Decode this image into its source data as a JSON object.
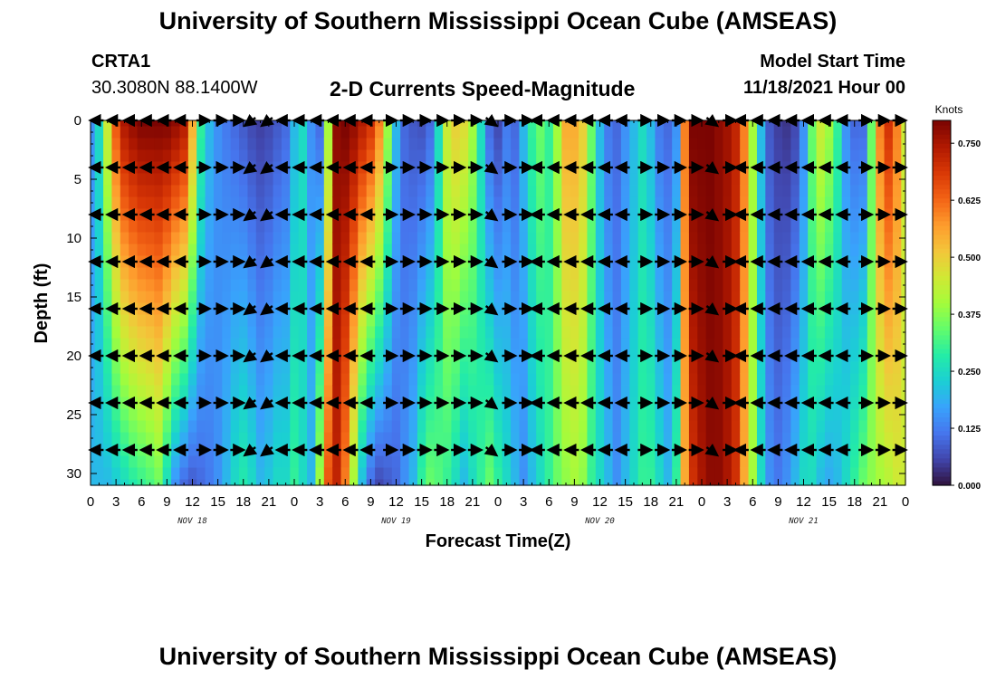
{
  "header": {
    "title": "University of Southern Mississippi Ocean Cube (AMSEAS)",
    "station_id": "CRTA1",
    "station_coords": "30.3080N  88.1400W",
    "plot_title": "2-D Currents Speed-Magnitude",
    "model_start_label": "Model Start Time",
    "model_start_value": "11/18/2021 Hour 00",
    "footer_title": "University of Southern Mississippi Ocean Cube (AMSEAS)"
  },
  "chart_data": {
    "type": "heatmap",
    "title": "2-D Currents Speed-Magnitude",
    "xlabel": "Forecast Time(Z)",
    "ylabel": "Depth (ft)",
    "x_unit": "hours since model start",
    "xlim": [
      0,
      96
    ],
    "ylim": [
      0,
      31
    ],
    "y_inverted": true,
    "x_tick_values": [
      0,
      3,
      6,
      9,
      12,
      15,
      18,
      21,
      24,
      27,
      30,
      33,
      36,
      39,
      42,
      45,
      48,
      51,
      54,
      57,
      60,
      63,
      66,
      69,
      72,
      75,
      78,
      81,
      84,
      87,
      90,
      93,
      96
    ],
    "x_tick_labels": [
      "0",
      "3",
      "6",
      "9",
      "12",
      "15",
      "18",
      "21",
      "0",
      "3",
      "6",
      "9",
      "12",
      "15",
      "18",
      "21",
      "0",
      "3",
      "6",
      "9",
      "12",
      "15",
      "18",
      "21",
      "0",
      "3",
      "6",
      "9",
      "12",
      "15",
      "18",
      "21",
      "0"
    ],
    "date_labels": [
      {
        "hour": 12,
        "text": "NOV 18"
      },
      {
        "hour": 36,
        "text": "NOV 19"
      },
      {
        "hour": 60,
        "text": "NOV 20"
      },
      {
        "hour": 84,
        "text": "NOV 21"
      }
    ],
    "y_ticks": [
      0,
      5,
      10,
      15,
      20,
      25,
      30
    ],
    "colorbar": {
      "label": "Knots",
      "min": 0.0,
      "max": 0.8,
      "ticks": [
        "0.000",
        "0.125",
        "0.250",
        "0.375",
        "0.500",
        "0.625",
        "0.750"
      ],
      "tick_values": [
        0.0,
        0.125,
        0.25,
        0.375,
        0.5,
        0.625,
        0.75
      ],
      "colors": [
        "#30123b",
        "#4145ab",
        "#4675ed",
        "#39a2fc",
        "#1bcfd4",
        "#24eca6",
        "#61fc6c",
        "#a4fc3b",
        "#d1e834",
        "#f3c63a",
        "#fe9b2d",
        "#f36315",
        "#d93806",
        "#b11901",
        "#7a0402"
      ]
    },
    "depths_ft": [
      0,
      1,
      2,
      3,
      4,
      5,
      6,
      7,
      8,
      9,
      10,
      11,
      12,
      13,
      14,
      15,
      16,
      17,
      18,
      19,
      20,
      21,
      22,
      23,
      24,
      25,
      26,
      27,
      28,
      29,
      30,
      31
    ],
    "hours": [
      0,
      1,
      2,
      3,
      4,
      5,
      6,
      7,
      8,
      9,
      10,
      11,
      12,
      13,
      14,
      15,
      16,
      17,
      18,
      19,
      20,
      21,
      22,
      23,
      24,
      25,
      26,
      27,
      28,
      29,
      30,
      31,
      32,
      33,
      34,
      35,
      36,
      37,
      38,
      39,
      40,
      41,
      42,
      43,
      44,
      45,
      46,
      47,
      48,
      49,
      50,
      51,
      52,
      53,
      54,
      55,
      56,
      57,
      58,
      59,
      60,
      61,
      62,
      63,
      64,
      65,
      66,
      67,
      68,
      69,
      70,
      71,
      72,
      73,
      74,
      75,
      76,
      77,
      78,
      79,
      80,
      81,
      82,
      83,
      84,
      85,
      86,
      87,
      88,
      89,
      90,
      91,
      92,
      93,
      94,
      95,
      96
    ],
    "surface_speed_knots": [
      0.15,
      0.25,
      0.45,
      0.65,
      0.75,
      0.78,
      0.8,
      0.8,
      0.8,
      0.8,
      0.78,
      0.75,
      0.55,
      0.3,
      0.2,
      0.15,
      0.12,
      0.1,
      0.08,
      0.06,
      0.05,
      0.06,
      0.08,
      0.1,
      0.2,
      0.25,
      0.15,
      0.1,
      0.4,
      0.78,
      0.8,
      0.78,
      0.74,
      0.7,
      0.6,
      0.4,
      0.2,
      0.1,
      0.08,
      0.07,
      0.1,
      0.25,
      0.45,
      0.5,
      0.48,
      0.4,
      0.25,
      0.1,
      0.06,
      0.12,
      0.1,
      0.2,
      0.3,
      0.35,
      0.3,
      0.4,
      0.55,
      0.55,
      0.5,
      0.35,
      0.2,
      0.12,
      0.1,
      0.15,
      0.2,
      0.25,
      0.2,
      0.12,
      0.1,
      0.15,
      0.6,
      0.8,
      0.8,
      0.8,
      0.78,
      0.76,
      0.72,
      0.6,
      0.4,
      0.2,
      0.08,
      0.05,
      0.04,
      0.06,
      0.15,
      0.35,
      0.45,
      0.4,
      0.3,
      0.15,
      0.1,
      0.1,
      0.35,
      0.6,
      0.7,
      0.6,
      0.45
    ],
    "bottom_speed_knots": [
      0.2,
      0.2,
      0.2,
      0.22,
      0.25,
      0.28,
      0.3,
      0.32,
      0.35,
      0.25,
      0.15,
      0.1,
      0.08,
      0.1,
      0.12,
      0.15,
      0.2,
      0.25,
      0.28,
      0.25,
      0.2,
      0.22,
      0.25,
      0.25,
      0.3,
      0.25,
      0.2,
      0.4,
      0.65,
      0.72,
      0.6,
      0.4,
      0.2,
      0.1,
      0.06,
      0.08,
      0.1,
      0.15,
      0.2,
      0.3,
      0.35,
      0.33,
      0.3,
      0.25,
      0.2,
      0.25,
      0.3,
      0.35,
      0.3,
      0.25,
      0.2,
      0.15,
      0.2,
      0.25,
      0.3,
      0.35,
      0.38,
      0.4,
      0.38,
      0.3,
      0.25,
      0.2,
      0.15,
      0.2,
      0.25,
      0.3,
      0.3,
      0.25,
      0.2,
      0.3,
      0.55,
      0.7,
      0.75,
      0.78,
      0.78,
      0.75,
      0.7,
      0.55,
      0.4,
      0.25,
      0.15,
      0.12,
      0.15,
      0.2,
      0.25,
      0.25,
      0.2,
      0.18,
      0.2,
      0.25,
      0.3,
      0.35,
      0.38,
      0.4,
      0.42,
      0.45,
      0.45
    ],
    "vector_depths_ft": [
      0,
      4,
      8,
      12,
      16,
      20,
      24,
      28
    ],
    "vector_hours": [
      0,
      2,
      4,
      6,
      8,
      10,
      12,
      14,
      16,
      18,
      20,
      22,
      24,
      26,
      28,
      30,
      32,
      34,
      36,
      38,
      40,
      42,
      44,
      46,
      48,
      50,
      52,
      54,
      56,
      58,
      60,
      62,
      64,
      66,
      68,
      70,
      72,
      74,
      76,
      78,
      80,
      82,
      84,
      86,
      88,
      90,
      92,
      94
    ],
    "vector_direction": [
      "W",
      "W",
      "W",
      "W",
      "W",
      "W",
      "E",
      "E",
      "E",
      "SW",
      "SW",
      "W",
      "W",
      "W",
      "W",
      "W",
      "W",
      "E",
      "E",
      "E",
      "E",
      "E",
      "E",
      "SE",
      "E",
      "E",
      "W",
      "W",
      "W",
      "W",
      "W",
      "W",
      "E",
      "E",
      "E",
      "E",
      "SE",
      "E",
      "W",
      "W",
      "W",
      "W",
      "W",
      "W",
      "W",
      "E",
      "E",
      "E"
    ]
  }
}
